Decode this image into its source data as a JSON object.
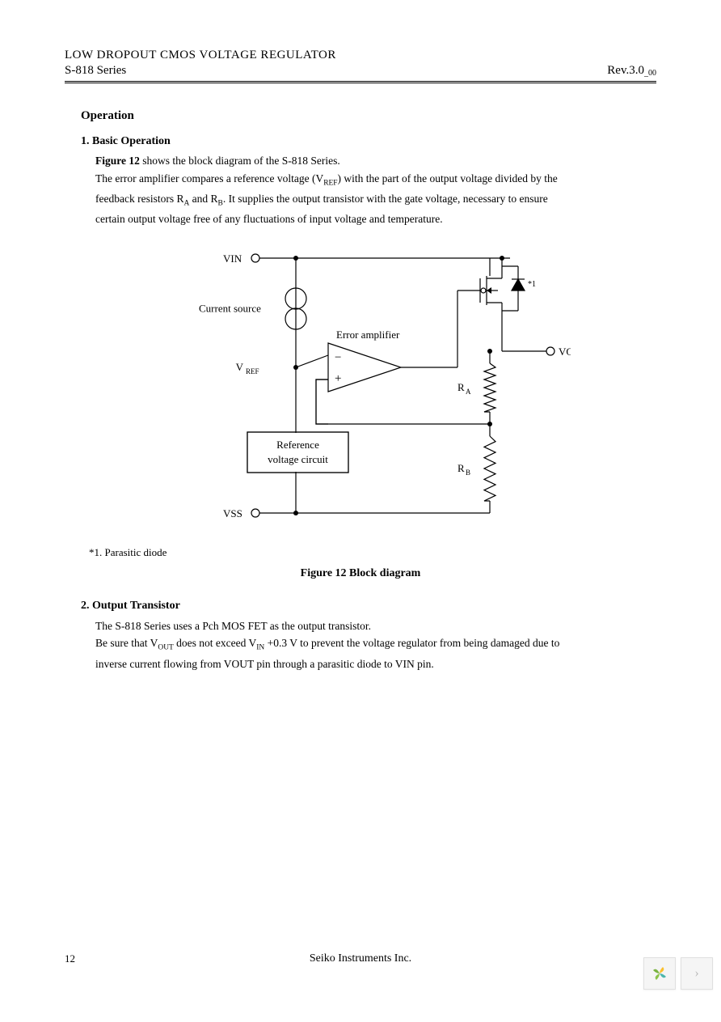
{
  "header": {
    "title_line1": "LOW DROPOUT CMOS VOLTAGE REGULATOR",
    "title_line2": "S-818 Series",
    "revision": "Rev.3.0",
    "revision_sub": "_00"
  },
  "section": {
    "operation_title": "Operation",
    "sub1_title": "1. Basic Operation",
    "sub1_p1_a": "Figure 12",
    "sub1_p1_b": " shows the block diagram of the S-818 Series.",
    "sub1_p2": "The error amplifier compares a reference voltage (V",
    "sub1_p2_sub": "REF",
    "sub1_p2_b": ") with the part of the output voltage divided by the",
    "sub1_p3": "feedback resistors R",
    "sub1_p3_sub1": "A",
    "sub1_p3_mid": " and R",
    "sub1_p3_sub2": "B",
    "sub1_p3_b": ". It supplies the output transistor with the gate voltage, necessary to ensure",
    "sub1_p4": "certain output voltage free of any fluctuations of input voltage and temperature.",
    "footnote": "*1. Parasitic diode",
    "figure_caption": "Figure 12   Block diagram",
    "sub2_title": "2.  Output Transistor",
    "sub2_p1": "The S-818 Series uses a Pch MOS FET as the output transistor.",
    "sub2_p2a": "Be sure that V",
    "sub2_p2a_sub": "OUT",
    "sub2_p2b": " does not exceed V",
    "sub2_p2b_sub": "IN",
    "sub2_p2c": " +0.3 V to prevent the voltage regulator from being damaged due to",
    "sub2_p3": "inverse current flowing from VOUT pin through a parasitic diode to VIN pin."
  },
  "diagram": {
    "type": "block-circuit",
    "stroke": "#000000",
    "stroke_width": 1.2,
    "labels": {
      "vin": "VIN",
      "vss": "VSS",
      "vout": "VOUT",
      "vref": "V",
      "vref_sub": "REF",
      "current_source": "Current source",
      "error_amp": "Error amplifier",
      "ref_circuit_l1": "Reference",
      "ref_circuit_l2": "voltage circuit",
      "ra": "R",
      "ra_sub": "A",
      "rb": "R",
      "rb_sub": "B",
      "star": "*1"
    },
    "font_size_label": 13,
    "font_size_small": 11
  },
  "footer": {
    "page_num": "12",
    "company": "Seiko Instruments Inc."
  },
  "corner_icon_colors": [
    "#7bb342",
    "#4db6ac",
    "#fbc02d",
    "#8bc34a"
  ]
}
